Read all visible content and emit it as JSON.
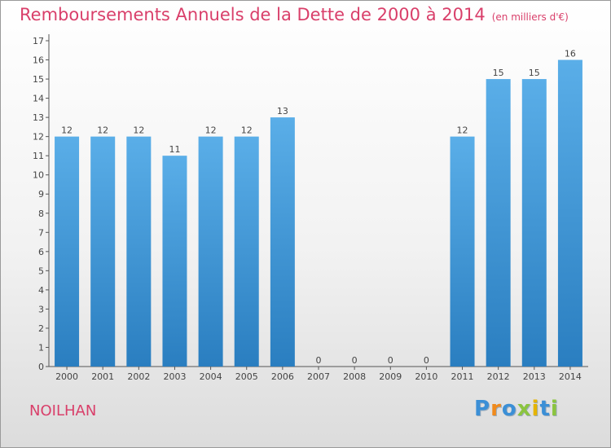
{
  "header": {
    "title": "Remboursements Annuels de la Dette de 2000 à 2014",
    "unit": "(en milliers d'€)"
  },
  "footer": {
    "place": "NOILHAN",
    "logo_letters": [
      "P",
      "r",
      "o",
      "x",
      "i",
      "t",
      "i"
    ]
  },
  "chart_data": {
    "type": "bar",
    "title": "Remboursements Annuels de la Dette de 2000 à 2014",
    "subtitle": "(en milliers d'€)",
    "categories": [
      "2000",
      "2001",
      "2002",
      "2003",
      "2004",
      "2005",
      "2006",
      "2007",
      "2008",
      "2009",
      "2010",
      "2011",
      "2012",
      "2013",
      "2014"
    ],
    "values": [
      12,
      12,
      12,
      11,
      12,
      12,
      13,
      0,
      0,
      0,
      0,
      12,
      15,
      15,
      16
    ],
    "ylim": [
      0,
      17
    ],
    "yticks": [
      0,
      1,
      2,
      3,
      4,
      5,
      6,
      7,
      8,
      9,
      10,
      11,
      12,
      13,
      14,
      15,
      16,
      17
    ],
    "grid": false,
    "bar_color_top": "#5aaee8",
    "bar_color_bottom": "#2a7ec0",
    "label_color": "#444444"
  }
}
